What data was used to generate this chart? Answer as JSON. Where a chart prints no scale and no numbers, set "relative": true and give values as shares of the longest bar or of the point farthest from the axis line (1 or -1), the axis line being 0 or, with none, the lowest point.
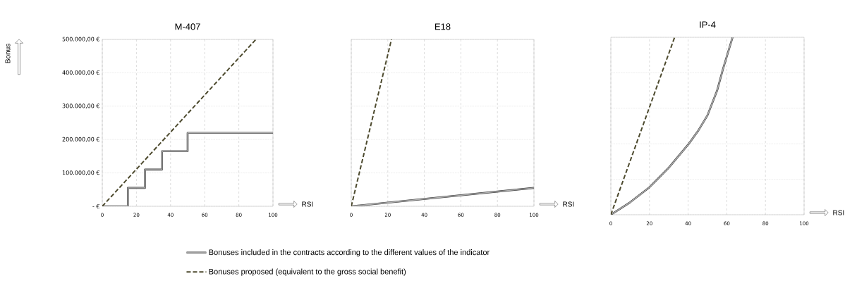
{
  "chart_data": [
    {
      "type": "line",
      "title": "M-407",
      "ylabel": "Bonus",
      "xlabel": "RSI",
      "xlim": [
        0,
        100
      ],
      "xticks": [
        0,
        20,
        40,
        60,
        80,
        100
      ],
      "ylim": [
        0,
        500000
      ],
      "yticks": [
        {
          "value": 0,
          "label": "-   €"
        },
        {
          "value": 100000,
          "label": "100.000,00 €"
        },
        {
          "value": 200000,
          "label": "200.000,00 €"
        },
        {
          "value": 300000,
          "label": "300.000,00 €"
        },
        {
          "value": 400000,
          "label": "400.000,00 €"
        },
        {
          "value": 500000,
          "label": "500.000,00 €"
        }
      ],
      "grid": true,
      "legend": "bottom",
      "series": [
        {
          "name": "Bonuses included in the contracts according to the different values of the indicator",
          "type": "step",
          "color": "#3f3f3f",
          "x": [
            0,
            15,
            25,
            35,
            50,
            100
          ],
          "values": [
            0,
            55000,
            110000,
            165000,
            220000,
            220000
          ]
        },
        {
          "name": "Bonuses proposed (equivalent to the gross social benefit)",
          "line_style": "dashed",
          "color": "#4d4a2e",
          "x": [
            0,
            90
          ],
          "values": [
            0,
            500000
          ]
        }
      ]
    },
    {
      "type": "line",
      "title": "E18",
      "xlabel": "RSI",
      "xlim": [
        0,
        100
      ],
      "xticks": [
        0,
        20,
        40,
        60,
        80,
        100
      ],
      "relative": true,
      "grid": true,
      "series": [
        {
          "color": "#3f3f3f",
          "x": [
            0,
            100
          ],
          "values": [
            0,
            0.11
          ]
        },
        {
          "line_style": "dashed",
          "color": "#4d4a2e",
          "x": [
            0,
            22
          ],
          "values": [
            0,
            1
          ]
        }
      ]
    },
    {
      "type": "line",
      "title": "IP-4",
      "xlabel": "RSI",
      "xlim": [
        0,
        100
      ],
      "xticks": [
        0,
        20,
        40,
        60,
        80,
        100
      ],
      "relative": true,
      "grid": true,
      "series": [
        {
          "color": "#3f3f3f",
          "x": [
            0,
            10,
            20,
            30,
            40,
            45,
            50,
            55,
            58,
            63
          ],
          "values": [
            0,
            0.07,
            0.155,
            0.265,
            0.395,
            0.47,
            0.56,
            0.7,
            0.82,
            1
          ]
        },
        {
          "line_style": "dashed",
          "color": "#4d4a2e",
          "x": [
            0,
            33
          ],
          "values": [
            0,
            1
          ]
        }
      ]
    }
  ]
}
